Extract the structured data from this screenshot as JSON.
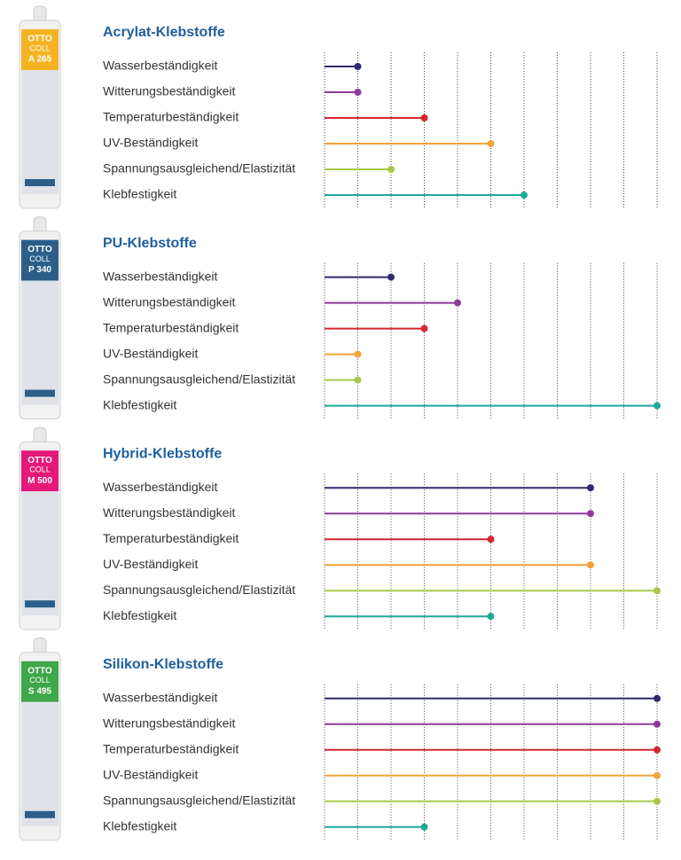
{
  "chart_data": [
    {
      "type": "lollipop",
      "title": "Acrylat-Klebstoffe",
      "product": {
        "brand": "OTTO",
        "line": "COLL",
        "code": "A 265",
        "color": "#f5b323"
      },
      "categories": [
        "Wasserbeständigkeit",
        "Witterungsbeständigkeit",
        "Temperaturbeständigkeit",
        "UV-Beständigkeit",
        "Spannungsausgleichend/Elastizität",
        "Klebfestigkeit"
      ],
      "values": [
        1,
        1,
        3,
        5,
        2,
        6
      ],
      "colors": [
        "#2e2a6e",
        "#8e3a9a",
        "#d6262e",
        "#f2a33a",
        "#a8c84a",
        "#1fa89a"
      ],
      "xlim": [
        0,
        10
      ],
      "xticks": [
        0,
        1,
        2,
        3,
        4,
        5,
        6,
        7,
        8,
        9,
        10
      ],
      "grid": true
    },
    {
      "type": "lollipop",
      "title": "PU-Klebstoffe",
      "product": {
        "brand": "OTTO",
        "line": "COLL",
        "code": "P 340",
        "color": "#2b5f8a"
      },
      "categories": [
        "Wasserbeständigkeit",
        "Witterungsbeständigkeit",
        "Temperaturbeständigkeit",
        "UV-Beständigkeit",
        "Spannungsausgleichend/Elastizität",
        "Klebfestigkeit"
      ],
      "values": [
        2,
        4,
        3,
        1,
        1,
        10
      ],
      "colors": [
        "#2e2a6e",
        "#8e3a9a",
        "#d6262e",
        "#f2a33a",
        "#a8c84a",
        "#1fa89a"
      ],
      "xlim": [
        0,
        10
      ],
      "xticks": [
        0,
        1,
        2,
        3,
        4,
        5,
        6,
        7,
        8,
        9,
        10
      ],
      "grid": true
    },
    {
      "type": "lollipop",
      "title": "Hybrid-Klebstoffe",
      "product": {
        "brand": "OTTO",
        "line": "COLL",
        "code": "M 500",
        "color": "#e5197a"
      },
      "categories": [
        "Wasserbeständigkeit",
        "Witterungsbeständigkeit",
        "Temperaturbeständigkeit",
        "UV-Beständigkeit",
        "Spannungsausgleichend/Elastizität",
        "Klebfestigkeit"
      ],
      "values": [
        8,
        8,
        5,
        8,
        10,
        5
      ],
      "colors": [
        "#2e2a6e",
        "#8e3a9a",
        "#d6262e",
        "#f2a33a",
        "#a8c84a",
        "#1fa89a"
      ],
      "xlim": [
        0,
        10
      ],
      "xticks": [
        0,
        1,
        2,
        3,
        4,
        5,
        6,
        7,
        8,
        9,
        10
      ],
      "grid": true
    },
    {
      "type": "lollipop",
      "title": "Silikon-Klebstoffe",
      "product": {
        "brand": "OTTO",
        "line": "COLL",
        "code": "S 495",
        "color": "#3fa649"
      },
      "categories": [
        "Wasserbeständigkeit",
        "Witterungsbeständigkeit",
        "Temperaturbeständigkeit",
        "UV-Beständigkeit",
        "Spannungsausgleichend/Elastizität",
        "Klebfestigkeit"
      ],
      "values": [
        10,
        10,
        10,
        10,
        10,
        3
      ],
      "colors": [
        "#2e2a6e",
        "#8e3a9a",
        "#d6262e",
        "#f2a33a",
        "#a8c84a",
        "#1fa89a"
      ],
      "xlim": [
        0,
        10
      ],
      "xticks": [
        0,
        1,
        2,
        3,
        4,
        5,
        6,
        7,
        8,
        9,
        10
      ],
      "grid": true
    }
  ]
}
